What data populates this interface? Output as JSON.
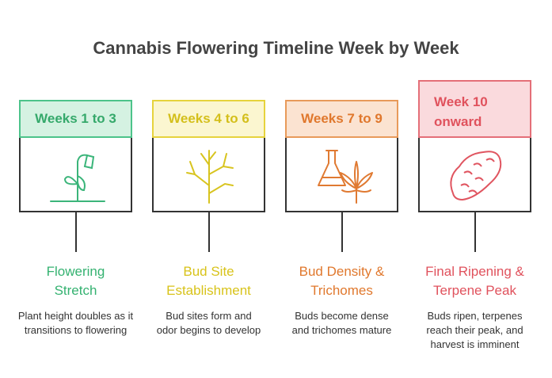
{
  "title": "Cannabis Flowering Timeline Week by Week",
  "stages": [
    {
      "label": "Weeks 1 to 3",
      "heading": "Flowering Stretch",
      "description": "Plant height doubles as it transitions to flowering"
    },
    {
      "label": "Weeks 4 to 6",
      "heading": "Bud Site Establishment",
      "description": "Bud sites form and odor begins to develop"
    },
    {
      "label": "Weeks 7 to 9",
      "heading": "Bud Density & Trichomes",
      "description": "Buds become dense and trichomes mature"
    },
    {
      "label": "Week 10 onward",
      "heading": "Final Ripening & Terpene Peak",
      "description": "Buds ripen, terpenes reach their peak, and harvest is imminent"
    }
  ]
}
